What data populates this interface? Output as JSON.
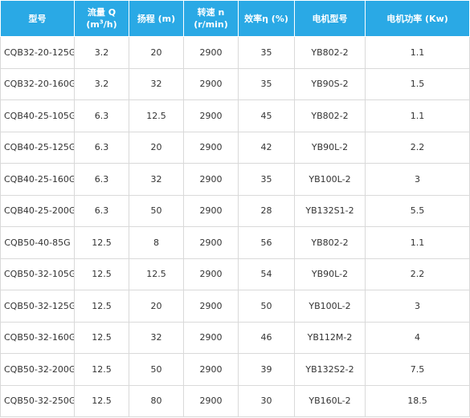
{
  "headers": [
    {
      "line1": "型号",
      "line2": ""
    },
    {
      "line1": "流量 Q",
      "line2_pre": "(m",
      "line2_sup": "3",
      "line2_post": "/h)"
    },
    {
      "line1": "扬程 (m)",
      "line2": ""
    },
    {
      "line1": "转速 n",
      "line2": "(r/min)"
    },
    {
      "line1": "效率η (%)",
      "line2": ""
    },
    {
      "line1": "电机型号",
      "line2": ""
    },
    {
      "line1": "电机功率 (Kw)",
      "line2": ""
    }
  ],
  "rows": [
    {
      "model": "CQB32-20-125G",
      "flow": "3.2",
      "head": "20",
      "speed": "2900",
      "efficiency": "35",
      "motor": "YB802-2",
      "power": "1.1"
    },
    {
      "model": "CQB32-20-160G",
      "flow": "3.2",
      "head": "32",
      "speed": "2900",
      "efficiency": "35",
      "motor": "YB90S-2",
      "power": "1.5"
    },
    {
      "model": "CQB40-25-105G",
      "flow": "6.3",
      "head": "12.5",
      "speed": "2900",
      "efficiency": "45",
      "motor": "YB802-2",
      "power": "1.1"
    },
    {
      "model": "CQB40-25-125G",
      "flow": "6.3",
      "head": "20",
      "speed": "2900",
      "efficiency": "42",
      "motor": "YB90L-2",
      "power": "2.2"
    },
    {
      "model": "CQB40-25-160G",
      "flow": "6.3",
      "head": "32",
      "speed": "2900",
      "efficiency": "35",
      "motor": "YB100L-2",
      "power": "3"
    },
    {
      "model": "CQB40-25-200G",
      "flow": "6.3",
      "head": "50",
      "speed": "2900",
      "efficiency": "28",
      "motor": "YB132S1-2",
      "power": "5.5"
    },
    {
      "model": "CQB50-40-85G",
      "flow": "12.5",
      "head": "8",
      "speed": "2900",
      "efficiency": "56",
      "motor": "YB802-2",
      "power": "1.1"
    },
    {
      "model": "CQB50-32-105G",
      "flow": "12.5",
      "head": "12.5",
      "speed": "2900",
      "efficiency": "54",
      "motor": "YB90L-2",
      "power": "2.2"
    },
    {
      "model": "CQB50-32-125G",
      "flow": "12.5",
      "head": "20",
      "speed": "2900",
      "efficiency": "50",
      "motor": "YB100L-2",
      "power": "3"
    },
    {
      "model": "CQB50-32-160G",
      "flow": "12.5",
      "head": "32",
      "speed": "2900",
      "efficiency": "46",
      "motor": "YB112M-2",
      "power": "4"
    },
    {
      "model": "CQB50-32-200G",
      "flow": "12.5",
      "head": "50",
      "speed": "2900",
      "efficiency": "39",
      "motor": "YB132S2-2",
      "power": "7.5"
    },
    {
      "model": "CQB50-32-250G",
      "flow": "12.5",
      "head": "80",
      "speed": "2900",
      "efficiency": "30",
      "motor": "YB160L-2",
      "power": "18.5"
    }
  ],
  "colors": {
    "header_bg": "#2aa9e5",
    "header_text": "#ffffff",
    "border": "#d9d9d9",
    "cell_text": "#333333"
  }
}
